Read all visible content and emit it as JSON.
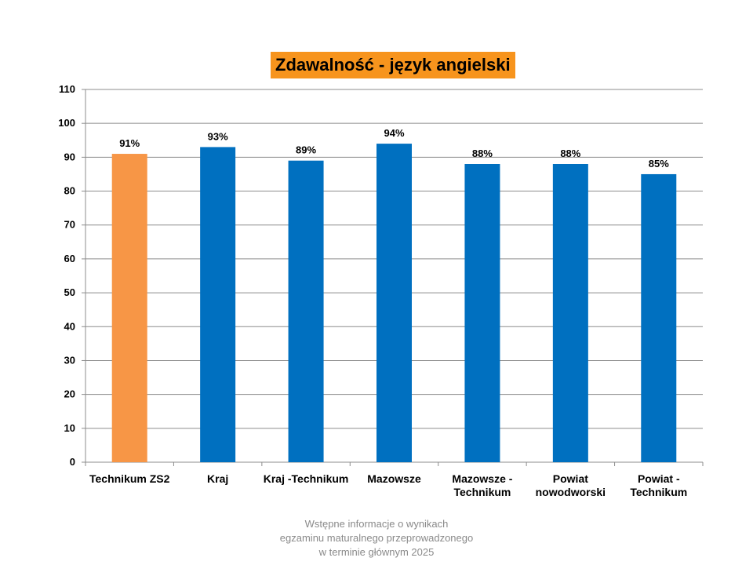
{
  "chart_data": {
    "type": "bar",
    "title": "Zdawalność - język angielski",
    "categories": [
      [
        "Technikum ZS2"
      ],
      [
        "Kraj"
      ],
      [
        "Kraj -Technikum"
      ],
      [
        "Mazowsze"
      ],
      [
        "Mazowsze -",
        "Technikum"
      ],
      [
        "Powiat",
        "nowodworski"
      ],
      [
        "Powiat -",
        "Technikum"
      ]
    ],
    "values": [
      91,
      93,
      89,
      94,
      88,
      88,
      85
    ],
    "data_labels": [
      "91%",
      "93%",
      "89%",
      "94%",
      "88%",
      "88%",
      "85%"
    ],
    "bar_colors": [
      "#f79646",
      "#0070c0",
      "#0070c0",
      "#0070c0",
      "#0070c0",
      "#0070c0",
      "#0070c0"
    ],
    "ylim": [
      0,
      110
    ],
    "yticks": [
      0,
      10,
      20,
      30,
      40,
      50,
      60,
      70,
      80,
      90,
      100,
      110
    ],
    "grid": true,
    "title_bg_color": "#f7941d",
    "grid_color": "#8c8c8c"
  },
  "footer": {
    "lines": [
      "Wstępne informacje o wynikach",
      "egzaminu maturalnego przeprowadzonego",
      "w terminie głównym 2025"
    ]
  }
}
